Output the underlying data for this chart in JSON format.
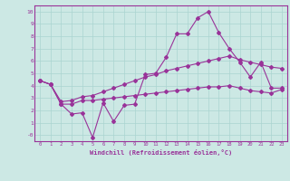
{
  "background_color": "#cce8e4",
  "line_color": "#993399",
  "grid_color": "#aad4d0",
  "xlabel": "Windchill (Refroidissement éolien,°C)",
  "xlabel_color": "#993399",
  "tick_color": "#993399",
  "xlim": [
    -0.5,
    23.5
  ],
  "ylim": [
    -0.5,
    10.5
  ],
  "yticks": [
    0,
    1,
    2,
    3,
    4,
    5,
    6,
    7,
    8,
    9,
    10
  ],
  "ytick_labels": [
    "-0",
    "1",
    "2",
    "3",
    "4",
    "5",
    "6",
    "7",
    "8",
    "9",
    "10"
  ],
  "xticks": [
    0,
    1,
    2,
    3,
    4,
    5,
    6,
    7,
    8,
    9,
    10,
    11,
    12,
    13,
    14,
    15,
    16,
    17,
    18,
    19,
    20,
    21,
    22,
    23
  ],
  "line1_x": [
    0,
    1,
    2,
    3,
    4,
    5,
    6,
    7,
    8,
    9,
    10,
    11,
    12,
    13,
    14,
    15,
    16,
    17,
    18,
    19,
    20,
    21,
    22,
    23
  ],
  "line1_y": [
    4.4,
    4.1,
    2.5,
    1.7,
    1.8,
    -0.2,
    2.6,
    1.1,
    2.4,
    2.5,
    4.9,
    5.0,
    6.3,
    8.2,
    8.2,
    9.5,
    10.0,
    8.3,
    7.0,
    5.9,
    4.7,
    5.9,
    3.8,
    3.8
  ],
  "line2_x": [
    0,
    1,
    2,
    3,
    4,
    5,
    6,
    7,
    8,
    9,
    10,
    11,
    12,
    13,
    14,
    15,
    16,
    17,
    18,
    19,
    20,
    21,
    22,
    23
  ],
  "line2_y": [
    4.4,
    4.1,
    2.7,
    2.8,
    3.1,
    3.2,
    3.5,
    3.8,
    4.1,
    4.4,
    4.7,
    4.9,
    5.2,
    5.4,
    5.6,
    5.8,
    6.0,
    6.2,
    6.4,
    6.1,
    5.9,
    5.7,
    5.5,
    5.4
  ],
  "line3_x": [
    0,
    1,
    2,
    3,
    4,
    5,
    6,
    7,
    8,
    9,
    10,
    11,
    12,
    13,
    14,
    15,
    16,
    17,
    18,
    19,
    20,
    21,
    22,
    23
  ],
  "line3_y": [
    4.4,
    4.1,
    2.5,
    2.5,
    2.8,
    2.8,
    2.9,
    3.0,
    3.1,
    3.2,
    3.3,
    3.4,
    3.5,
    3.6,
    3.7,
    3.8,
    3.9,
    3.9,
    4.0,
    3.8,
    3.6,
    3.5,
    3.4,
    3.7
  ],
  "marker": "D",
  "markersize": 2.0,
  "linewidth": 0.8
}
